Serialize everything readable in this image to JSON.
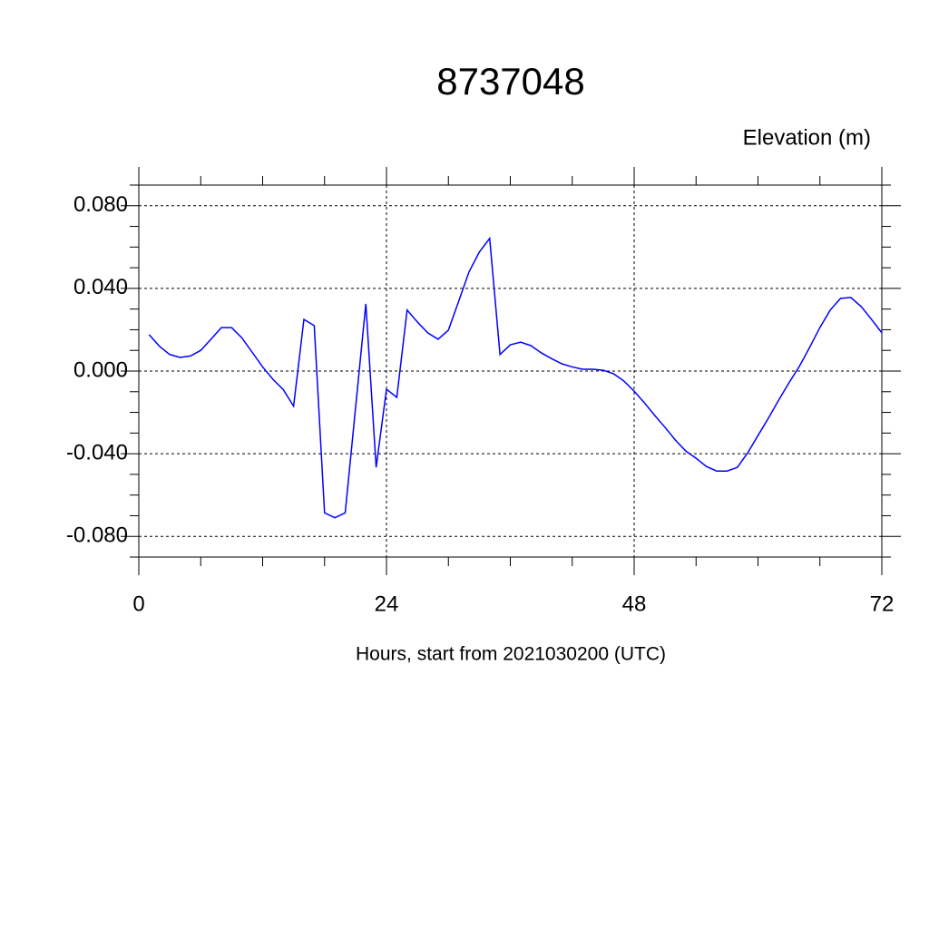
{
  "chart_data": {
    "type": "line",
    "title": "8737048",
    "y_label": "Elevation (m)",
    "x_label": "Hours, start from 2021030200 (UTC)",
    "x": [
      1,
      2,
      3,
      4,
      5,
      6,
      7,
      8,
      9,
      10,
      11,
      12,
      13,
      14,
      15,
      16,
      17,
      18,
      19,
      20,
      21,
      22,
      23,
      24,
      25,
      26,
      27,
      28,
      29,
      30,
      31,
      32,
      33,
      34,
      35,
      36,
      37,
      38,
      39,
      40,
      41,
      42,
      43,
      44,
      45,
      46,
      47,
      48,
      49,
      50,
      51,
      52,
      53,
      54,
      55,
      56,
      57,
      58,
      59,
      60,
      61,
      62,
      63,
      64,
      65,
      66,
      67,
      68,
      69,
      70,
      71,
      72
    ],
    "series": [
      {
        "color": "#0000ff",
        "values": [
          0.0176,
          0.012,
          0.008,
          0.0066,
          0.0073,
          0.01,
          0.0154,
          0.021,
          0.021,
          0.016,
          0.009,
          0.002,
          -0.004,
          -0.009,
          -0.017,
          0.025,
          0.022,
          -0.0686,
          -0.071,
          -0.0686,
          -0.018,
          0.0325,
          -0.0466,
          -0.0088,
          -0.0127,
          0.0295,
          0.0237,
          0.0185,
          0.0154,
          0.0198,
          0.0338,
          0.048,
          0.0576,
          0.0642,
          0.008,
          0.0127,
          0.014,
          0.0123,
          0.0088,
          0.006,
          0.0035,
          0.002,
          0.0009,
          0.0009,
          0.0004,
          -0.0013,
          -0.0048,
          -0.0097,
          -0.0154,
          -0.0215,
          -0.0273,
          -0.0334,
          -0.0387,
          -0.0422,
          -0.0462,
          -0.0484,
          -0.0484,
          -0.0466,
          -0.0396,
          -0.0312,
          -0.0229,
          -0.0141,
          -0.0057,
          0.0022,
          0.0114,
          0.0211,
          0.0295,
          0.0352,
          0.0356,
          0.0312,
          0.025,
          0.0185
        ]
      }
    ],
    "xlim": [
      0,
      72
    ],
    "xticks": [
      0,
      24,
      48,
      72
    ],
    "xminorticks": [
      6,
      12,
      18,
      30,
      36,
      42,
      54,
      60,
      66
    ],
    "ylim": [
      -0.09,
      0.09
    ],
    "yticks": [
      {
        "value": -0.08,
        "label": "-0.080"
      },
      {
        "value": -0.04,
        "label": "-0.040"
      },
      {
        "value": 0,
        "label": "0.000"
      },
      {
        "value": 0.04,
        "label": "0.040"
      },
      {
        "value": 0.08,
        "label": "0.080"
      }
    ],
    "yminorticks": [
      -0.09,
      -0.07,
      -0.06,
      -0.05,
      -0.03,
      -0.02,
      -0.01,
      0.01,
      0.02,
      0.03,
      0.05,
      0.06,
      0.07,
      0.09
    ],
    "grid": true
  }
}
